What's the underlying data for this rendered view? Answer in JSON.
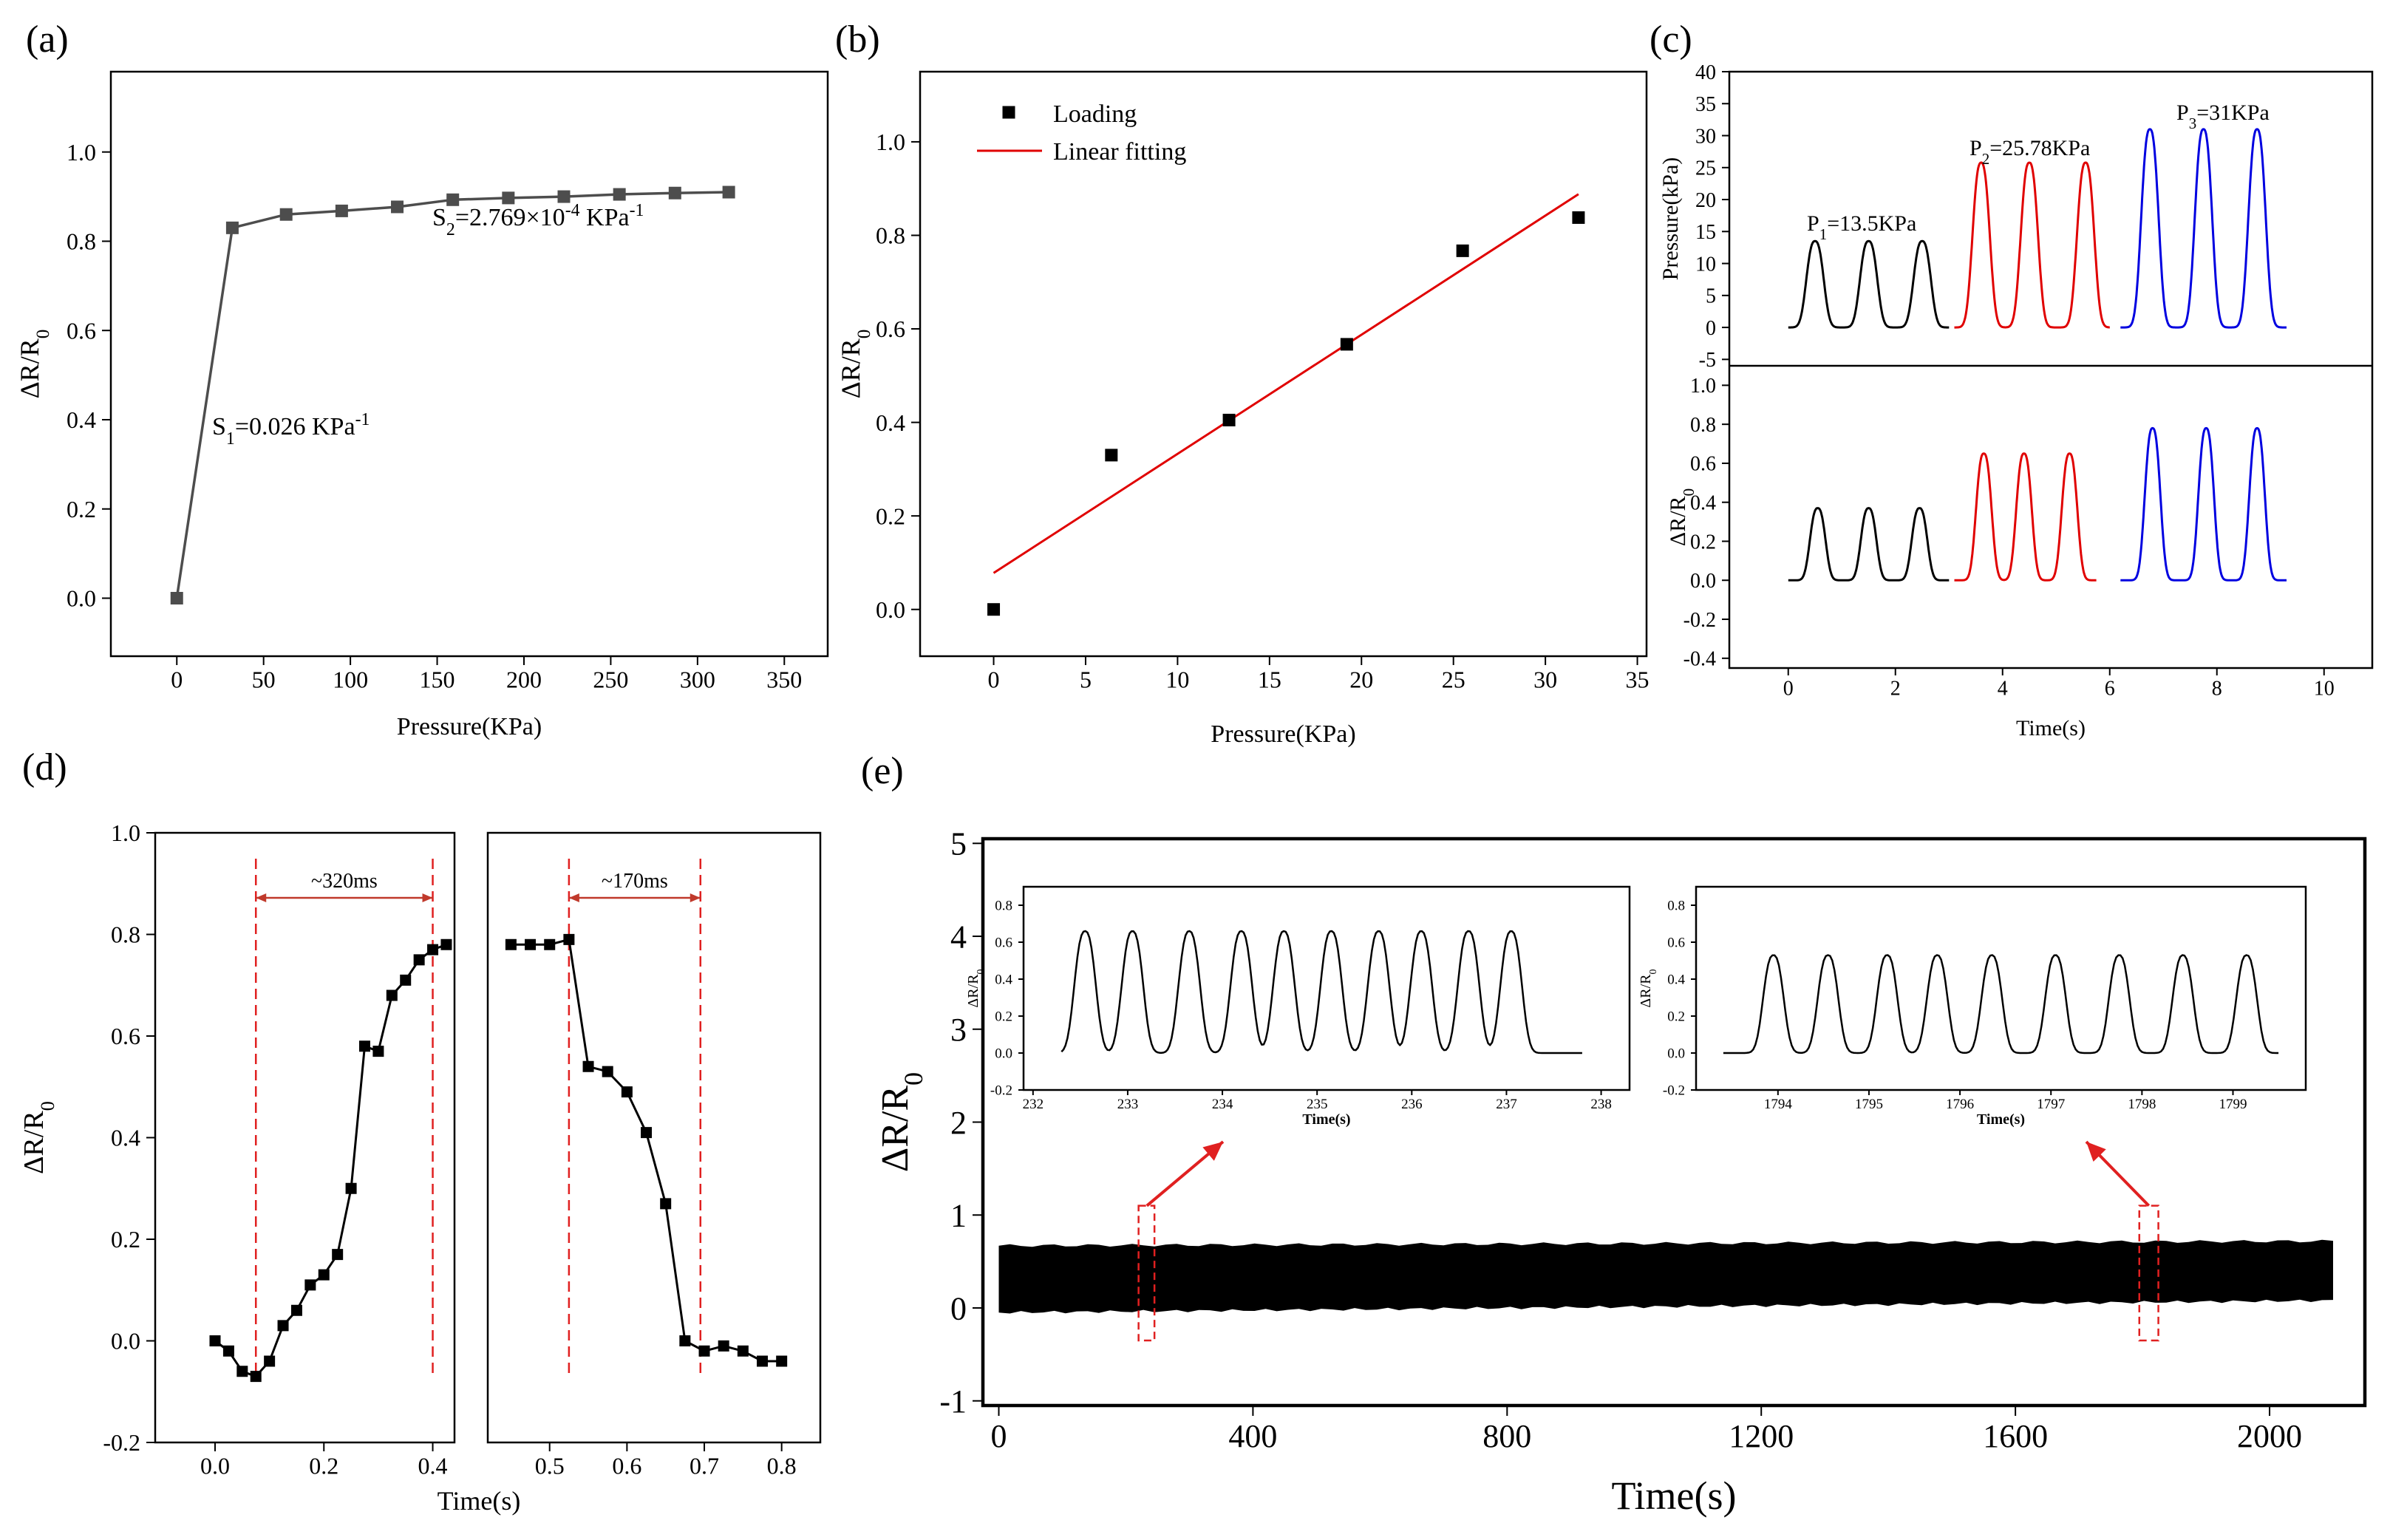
{
  "chart_data": [
    {
      "panel_label": "(a)",
      "type": "line",
      "xlabel": "Pressure(KPa)",
      "ylabel": "ΔR/R",
      "ylabel_sub": "0",
      "xlim": [
        -38,
        375
      ],
      "ylim": [
        -0.13,
        1.18
      ],
      "xticks": [
        0,
        50,
        100,
        150,
        200,
        250,
        300,
        350
      ],
      "yticks": [
        0.0,
        0.2,
        0.4,
        0.6,
        0.8,
        1.0
      ],
      "ytick_labels": [
        "0.0",
        "0.2",
        "0.4",
        "0.6",
        "0.8",
        "1.0"
      ],
      "series": [
        {
          "color": "#4d4d4d",
          "x": [
            0,
            32,
            63,
            95,
            127,
            159,
            191,
            223,
            255,
            287,
            318
          ],
          "y": [
            0.0,
            0.83,
            0.86,
            0.868,
            0.877,
            0.893,
            0.897,
            0.9,
            0.905,
            0.908,
            0.91
          ]
        }
      ],
      "annotations": [
        {
          "text_main": "S",
          "sub": "1",
          "text_rest": "=0.026 KPa",
          "sup": "-1"
        },
        {
          "text_main": "S",
          "sub": "2",
          "text_rest": "=2.769×10",
          "sup": "-4",
          "text_tail": " KPa",
          "sup2": "-1"
        }
      ]
    },
    {
      "panel_label": "(b)",
      "type": "scatter",
      "xlabel": "Pressure(KPa)",
      "ylabel": "ΔR/R",
      "ylabel_sub": "0",
      "xlim": [
        -4,
        35.5
      ],
      "ylim": [
        -0.1,
        1.15
      ],
      "xticks": [
        0,
        5,
        10,
        15,
        20,
        25,
        30,
        35
      ],
      "yticks": [
        0.0,
        0.2,
        0.4,
        0.6,
        0.8,
        1.0
      ],
      "ytick_labels": [
        "0.0",
        "0.2",
        "0.4",
        "0.6",
        "0.8",
        "1.0"
      ],
      "legend": [
        "Loading",
        "Linear fitting"
      ],
      "series": [
        {
          "name": "Loading",
          "color": "#000000",
          "x": [
            0,
            6.4,
            12.8,
            19.2,
            25.5,
            31.8
          ],
          "y": [
            0.0,
            0.33,
            0.405,
            0.567,
            0.767,
            0.838
          ]
        },
        {
          "name": "Linear fitting",
          "color": "#e00000",
          "x": [
            0,
            31.8
          ],
          "y": [
            0.078,
            0.888
          ]
        }
      ]
    },
    {
      "panel_label": "(c)",
      "type": "line",
      "xlabel": "Time(s)",
      "xlim": [
        -1.1,
        10.9
      ],
      "xticks": [
        0,
        2,
        4,
        6,
        8,
        10
      ],
      "top": {
        "ylabel": "Pressure(kPa)",
        "ylim": [
          -6,
          40
        ],
        "yticks": [
          -5,
          0,
          5,
          10,
          15,
          20,
          25,
          30,
          35,
          40
        ],
        "labels": [
          {
            "main": "P",
            "sub": "1",
            "rest": "=13.5KPa"
          },
          {
            "main": "P",
            "sub": "2",
            "rest": "=25.78KPa"
          },
          {
            "main": "P",
            "sub": "3",
            "rest": "=31KPa"
          }
        ],
        "series": [
          {
            "color": "#000000",
            "start": 0.0,
            "end": 3.0,
            "amp": 13.5,
            "peaks": [
              0.5,
              1.5,
              2.5
            ]
          },
          {
            "color": "#e00000",
            "start": 3.1,
            "end": 6.0,
            "amp": 25.78,
            "peaks": [
              3.6,
              4.5,
              5.55
            ]
          },
          {
            "color": "#0000e0",
            "start": 6.2,
            "end": 9.3,
            "amp": 31,
            "peaks": [
              6.75,
              7.75,
              8.75
            ]
          }
        ]
      },
      "bottom": {
        "ylabel": "ΔR/R",
        "ylabel_sub": "0",
        "ylim": [
          -0.45,
          1.1
        ],
        "yticks": [
          -0.4,
          -0.2,
          0.0,
          0.2,
          0.4,
          0.6,
          0.8,
          1.0
        ],
        "ytick_labels": [
          "-0.4",
          "-0.2",
          "0.0",
          "0.2",
          "0.4",
          "0.6",
          "0.8",
          "1.0"
        ],
        "series": [
          {
            "color": "#000000",
            "start": 0.0,
            "end": 3.0,
            "amp": 0.37,
            "peaks": [
              0.55,
              1.5,
              2.45
            ]
          },
          {
            "color": "#e00000",
            "start": 3.1,
            "end": 5.75,
            "amp": 0.65,
            "peaks": [
              3.65,
              4.4,
              5.25
            ]
          },
          {
            "color": "#0000e0",
            "start": 6.2,
            "end": 9.3,
            "amp": 0.78,
            "peaks": [
              6.8,
              7.8,
              8.75
            ]
          }
        ]
      }
    },
    {
      "panel_label": "(d)",
      "type": "line",
      "xlabel": "Time(s)",
      "ylabel": "ΔR/R",
      "ylabel_sub": "0",
      "ylim": [
        -0.2,
        1.0
      ],
      "yticks": [
        -0.2,
        0.0,
        0.2,
        0.4,
        0.6,
        0.8,
        1.0
      ],
      "ytick_labels": [
        "-0.2",
        "0.0",
        "0.2",
        "0.4",
        "0.6",
        "0.8",
        "1.0"
      ],
      "left": {
        "xlim": [
          -0.11,
          0.44
        ],
        "xticks": [
          0.0,
          0.2,
          0.4
        ],
        "xtick_labels": [
          "0.0",
          "0.2",
          "0.4"
        ],
        "annotation": "~320ms",
        "markers_x": [
          0.075,
          0.4
        ],
        "x": [
          0.0,
          0.025,
          0.05,
          0.075,
          0.1,
          0.125,
          0.15,
          0.175,
          0.2,
          0.225,
          0.25,
          0.275,
          0.3,
          0.325,
          0.35,
          0.375,
          0.4,
          0.425
        ],
        "y": [
          0.0,
          -0.02,
          -0.06,
          -0.07,
          -0.04,
          0.03,
          0.06,
          0.11,
          0.13,
          0.17,
          0.3,
          0.58,
          0.57,
          0.68,
          0.71,
          0.75,
          0.77,
          0.78
        ]
      },
      "right": {
        "xlim": [
          0.42,
          0.85
        ],
        "xticks": [
          0.5,
          0.6,
          0.7,
          0.8
        ],
        "xtick_labels": [
          "0.5",
          "0.6",
          "0.7",
          "0.8"
        ],
        "annotation": "~170ms",
        "markers_x": [
          0.525,
          0.695
        ],
        "x": [
          0.45,
          0.475,
          0.5,
          0.525,
          0.55,
          0.575,
          0.6,
          0.625,
          0.65,
          0.675,
          0.7,
          0.725,
          0.75,
          0.775,
          0.8
        ],
        "y": [
          0.78,
          0.78,
          0.78,
          0.79,
          0.54,
          0.53,
          0.49,
          0.41,
          0.27,
          0.0,
          -0.02,
          -0.01,
          -0.02,
          -0.04,
          -0.04
        ]
      }
    },
    {
      "panel_label": "(e)",
      "type": "area",
      "xlabel": "Time(s)",
      "ylabel": "ΔR/R",
      "ylabel_sub": "0",
      "xlim": [
        -25,
        2150
      ],
      "ylim": [
        -1.05,
        5.05
      ],
      "xticks": [
        0,
        400,
        800,
        1200,
        1600,
        2000
      ],
      "yticks": [
        -1,
        0,
        1,
        2,
        3,
        4,
        5
      ],
      "band": {
        "x": [
          0,
          2100
        ],
        "lower_start": -0.05,
        "lower_end": 0.08,
        "upper_start": 0.67,
        "upper_end": 0.72
      },
      "highlight_regions": [
        {
          "x": [
            220,
            245
          ]
        },
        {
          "x": [
            1795,
            1825
          ]
        }
      ],
      "insets": [
        {
          "xlabel": "Time(s)",
          "ylabel": "ΔR/R",
          "ylabel_sub": "0",
          "xlim": [
            231.9,
            238.3
          ],
          "ylim": [
            -0.2,
            0.9
          ],
          "xticks": [
            232,
            233,
            234,
            235,
            236,
            237,
            238
          ],
          "yticks": [
            -0.2,
            0.0,
            0.2,
            0.4,
            0.6,
            0.8
          ],
          "ytick_labels": [
            "-0.2",
            "0.0",
            "0.2",
            "0.4",
            "0.6",
            "0.8"
          ],
          "start": 232.3,
          "end": 237.8,
          "amp": 0.66,
          "peaks": [
            232.55,
            233.05,
            233.65,
            234.2,
            234.65,
            235.15,
            235.65,
            236.1,
            236.6,
            237.05
          ]
        },
        {
          "xlabel": "Time(s)",
          "ylabel": "ΔR/R",
          "ylabel_sub": "0",
          "xlim": [
            1793.1,
            1799.8
          ],
          "ylim": [
            -0.2,
            0.9
          ],
          "xticks": [
            1794,
            1795,
            1796,
            1797,
            1798,
            1799
          ],
          "yticks": [
            -0.2,
            0.0,
            0.2,
            0.4,
            0.6,
            0.8
          ],
          "ytick_labels": [
            "-0.2",
            "0.0",
            "0.2",
            "0.4",
            "0.6",
            "0.8"
          ],
          "start": 1793.4,
          "end": 1799.5,
          "amp": 0.53,
          "peaks": [
            1793.95,
            1794.55,
            1795.2,
            1795.75,
            1796.35,
            1797.05,
            1797.75,
            1798.45,
            1799.15
          ]
        }
      ]
    }
  ]
}
